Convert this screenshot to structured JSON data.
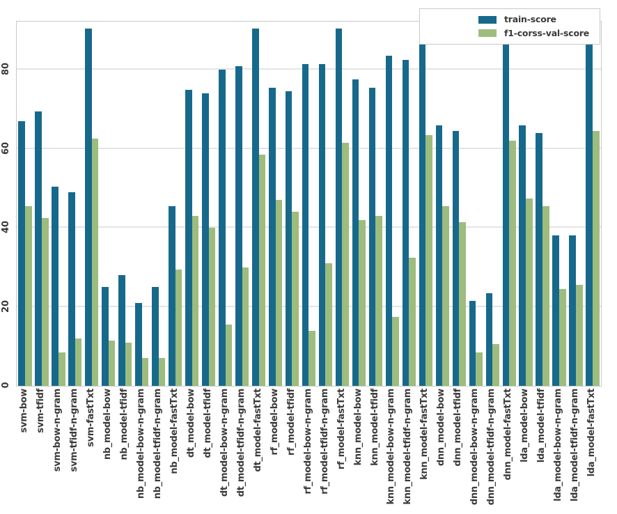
{
  "figure": {
    "background": "#ffffff",
    "text_color": "#3a3a3a",
    "spine_color": "#c9c9c9",
    "grid_color": "#e4e4e4"
  },
  "legend": {
    "position": "upper-right",
    "items": [
      {
        "label": "train-score",
        "color": "#17698c"
      },
      {
        "label": "f1-corss-val-score",
        "color": "#9dbc7e"
      }
    ]
  },
  "chart_data": {
    "type": "bar",
    "title": "",
    "xlabel": "",
    "ylabel": "",
    "ylim": [
      0,
      92.2
    ],
    "yticks": [
      0,
      20,
      40,
      60,
      80
    ],
    "grid": "horizontal",
    "legend_position": "upper-right",
    "categories": [
      "svm-bow",
      "svm-tfidf",
      "svm-bow-n-gram",
      "svm-tfidf-n-gram",
      "svm-fastTxt",
      "nb_model-bow",
      "nb_model-tfidf",
      "nb_model-bow-n-gram",
      "nb_model-tfidf-n-gram",
      "nb_model-fastTxt",
      "dt_model-bow",
      "dt_model-tfidf",
      "dt_model-bow-n-gram",
      "dt_model-tfidf-n-gram",
      "dt_model-fastTxt",
      "rf_model-bow",
      "rf_model-tfidf",
      "rf_model-bow-n-gram",
      "rf_model-tfidf-n-gram",
      "rf_model-fastTxt",
      "knn_model-bow",
      "knn_model-tfidf",
      "knn_model-bow-n-gram",
      "knn_model-tfidf-n-gram",
      "knn_model-fastTxt",
      "dnn_model-bow",
      "dnn_model-tfidf",
      "dnn_model-bow-n-gram",
      "dnn_model-tfidf-n-gram",
      "dnn_model-fastTxt",
      "lda_model-bow",
      "lda_model-tfidf",
      "lda_model-bow-n-gram",
      "lda_model-tfidf-n-gram",
      "lda_model-fastTxt"
    ],
    "series": [
      {
        "name": "train-score",
        "color": "#17698c",
        "values": [
          67,
          69.5,
          50.5,
          49,
          90.5,
          25,
          28,
          21,
          25,
          45.5,
          75,
          74,
          80,
          81,
          90.5,
          75.5,
          74.5,
          81.5,
          81.5,
          90.5,
          77.5,
          75.5,
          83.5,
          82.5,
          91,
          66,
          64.5,
          21.5,
          23.5,
          87,
          66,
          64,
          38,
          38,
          88
        ]
      },
      {
        "name": "f1-corss-val-score",
        "color": "#9dbc7e",
        "values": [
          45.5,
          42.5,
          8.5,
          12,
          62.5,
          11.5,
          11,
          7,
          7,
          29.5,
          43,
          40,
          15.5,
          30,
          58.5,
          47,
          44,
          14,
          31,
          61.5,
          42,
          43,
          17.5,
          32.5,
          63.5,
          45.5,
          41.5,
          8.5,
          10.5,
          62,
          47.5,
          45.5,
          24.5,
          25.5,
          64.5
        ]
      }
    ]
  }
}
